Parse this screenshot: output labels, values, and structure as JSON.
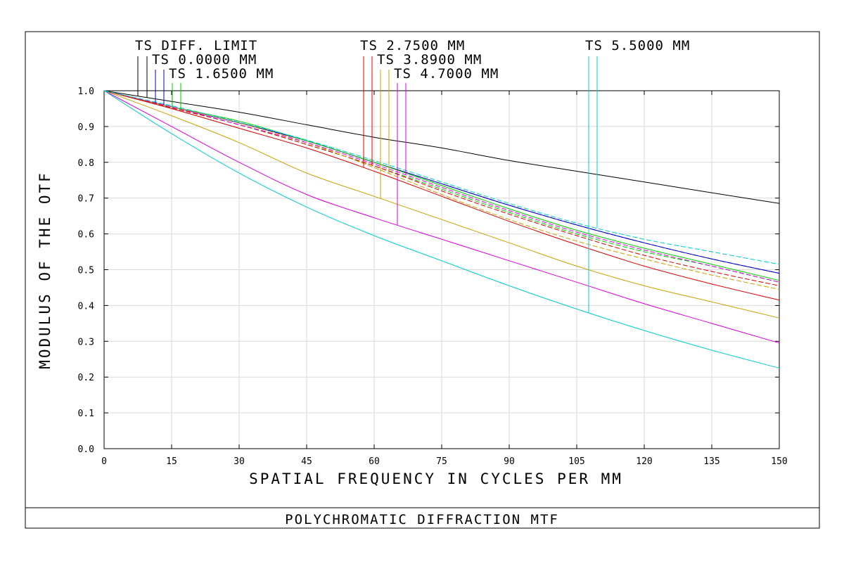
{
  "chart_data": {
    "type": "line",
    "title": "POLYCHROMATIC DIFFRACTION MTF",
    "xlabel": "SPATIAL FREQUENCY IN CYCLES PER MM",
    "ylabel": "MODULUS OF THE OTF",
    "xlim": [
      0,
      150
    ],
    "ylim": [
      0,
      1.0
    ],
    "xticks": [
      "0",
      "15",
      "30",
      "45",
      "60",
      "75",
      "90",
      "105",
      "120",
      "135",
      "150"
    ],
    "yticks": [
      "0.0",
      "0.1",
      "0.2",
      "0.3",
      "0.4",
      "0.5",
      "0.6",
      "0.7",
      "0.8",
      "0.9",
      "1.0"
    ],
    "grid": true,
    "legend": [
      {
        "label": "TS DIFF. LIMIT",
        "colors": [
          "#000000",
          "#000000"
        ]
      },
      {
        "label": "TS 0.0000 MM",
        "colors": [
          "#0000cc",
          "#0000cc"
        ]
      },
      {
        "label": "TS 1.6500 MM",
        "colors": [
          "#00cc00",
          "#00cc00"
        ]
      },
      {
        "label": "TS 2.7500 MM",
        "colors": [
          "#dd0000",
          "#dd0000"
        ]
      },
      {
        "label": "TS 3.8900 MM",
        "colors": [
          "#c8a000",
          "#c8a000"
        ]
      },
      {
        "label": "TS 4.7000 MM",
        "colors": [
          "#dd00dd",
          "#dd00dd"
        ]
      },
      {
        "label": "TS 5.5000 MM",
        "colors": [
          "#00cccc",
          "#00cccc"
        ]
      }
    ],
    "series": [
      {
        "name": "TS DIFF. LIMIT",
        "color": "#000000",
        "dash": "solid",
        "x": [
          0,
          15,
          30,
          45,
          60,
          75,
          90,
          105,
          120,
          135,
          150
        ],
        "y": [
          1.0,
          0.97,
          0.94,
          0.905,
          0.87,
          0.84,
          0.805,
          0.775,
          0.745,
          0.715,
          0.685
        ]
      },
      {
        "name": "TS 0.0000 MM",
        "color": "#0000cc",
        "dash": "solid",
        "x": [
          0,
          15,
          30,
          45,
          60,
          75,
          90,
          105,
          120,
          135,
          150
        ],
        "y": [
          1.0,
          0.955,
          0.91,
          0.86,
          0.8,
          0.74,
          0.68,
          0.625,
          0.575,
          0.53,
          0.49
        ]
      },
      {
        "name": "TS 0.0000 MM",
        "color": "#0000cc",
        "dash": "dashed",
        "x": [
          0,
          15,
          30,
          45,
          60,
          75,
          90,
          105,
          120,
          135,
          150
        ],
        "y": [
          1.0,
          0.955,
          0.91,
          0.86,
          0.8,
          0.74,
          0.68,
          0.625,
          0.575,
          0.53,
          0.49
        ]
      },
      {
        "name": "TS 1.6500 MM",
        "color": "#00cc00",
        "dash": "solid",
        "x": [
          0,
          15,
          30,
          45,
          60,
          75,
          90,
          105,
          120,
          135,
          150
        ],
        "y": [
          1.0,
          0.955,
          0.915,
          0.86,
          0.8,
          0.735,
          0.67,
          0.61,
          0.56,
          0.515,
          0.47
        ]
      },
      {
        "name": "TS 1.6500 MM",
        "color": "#00cc00",
        "dash": "dashed",
        "x": [
          0,
          15,
          30,
          45,
          60,
          75,
          90,
          105,
          120,
          135,
          150
        ],
        "y": [
          1.0,
          0.952,
          0.905,
          0.85,
          0.79,
          0.725,
          0.66,
          0.6,
          0.55,
          0.51,
          0.465
        ]
      },
      {
        "name": "TS 2.7500 MM",
        "color": "#dd0000",
        "dash": "solid",
        "x": [
          0,
          15,
          30,
          45,
          60,
          75,
          90,
          105,
          120,
          135,
          150
        ],
        "y": [
          1.0,
          0.95,
          0.895,
          0.84,
          0.775,
          0.705,
          0.635,
          0.57,
          0.51,
          0.46,
          0.415
        ]
      },
      {
        "name": "TS 2.7500 MM",
        "color": "#dd0000",
        "dash": "dashed",
        "x": [
          0,
          15,
          30,
          45,
          60,
          75,
          90,
          105,
          120,
          135,
          150
        ],
        "y": [
          1.0,
          0.952,
          0.905,
          0.85,
          0.79,
          0.72,
          0.655,
          0.595,
          0.54,
          0.495,
          0.455
        ]
      },
      {
        "name": "TS 3.8900 MM",
        "color": "#c8a000",
        "dash": "solid",
        "x": [
          0,
          15,
          30,
          45,
          60,
          75,
          90,
          105,
          120,
          135,
          150
        ],
        "y": [
          1.0,
          0.93,
          0.855,
          0.77,
          0.705,
          0.64,
          0.575,
          0.51,
          0.455,
          0.41,
          0.365
        ]
      },
      {
        "name": "TS 3.8900 MM",
        "color": "#c8a000",
        "dash": "dashed",
        "x": [
          0,
          15,
          30,
          45,
          60,
          75,
          90,
          105,
          120,
          135,
          150
        ],
        "y": [
          1.0,
          0.955,
          0.91,
          0.855,
          0.785,
          0.71,
          0.64,
          0.58,
          0.53,
          0.485,
          0.445
        ]
      },
      {
        "name": "TS 4.7000 MM",
        "color": "#dd00dd",
        "dash": "solid",
        "x": [
          0,
          15,
          30,
          45,
          60,
          75,
          90,
          105,
          120,
          135,
          150
        ],
        "y": [
          1.0,
          0.9,
          0.8,
          0.71,
          0.645,
          0.585,
          0.525,
          0.465,
          0.405,
          0.35,
          0.295
        ]
      },
      {
        "name": "TS 4.7000 MM",
        "color": "#dd00dd",
        "dash": "dashed",
        "x": [
          0,
          15,
          30,
          45,
          60,
          75,
          90,
          105,
          120,
          135,
          150
        ],
        "y": [
          1.0,
          0.955,
          0.905,
          0.855,
          0.795,
          0.73,
          0.665,
          0.605,
          0.555,
          0.51,
          0.465
        ]
      },
      {
        "name": "TS 5.5000 MM",
        "color": "#00cccc",
        "dash": "solid",
        "x": [
          0,
          15,
          30,
          45,
          60,
          75,
          90,
          105,
          120,
          135,
          150
        ],
        "y": [
          1.0,
          0.88,
          0.77,
          0.675,
          0.595,
          0.525,
          0.455,
          0.39,
          0.33,
          0.275,
          0.225
        ]
      },
      {
        "name": "TS 5.5000 MM",
        "color": "#00cccc",
        "dash": "dashed",
        "x": [
          0,
          15,
          30,
          45,
          60,
          75,
          90,
          105,
          120,
          135,
          150
        ],
        "y": [
          1.0,
          0.958,
          0.912,
          0.862,
          0.805,
          0.745,
          0.685,
          0.63,
          0.585,
          0.55,
          0.515
        ]
      }
    ]
  }
}
